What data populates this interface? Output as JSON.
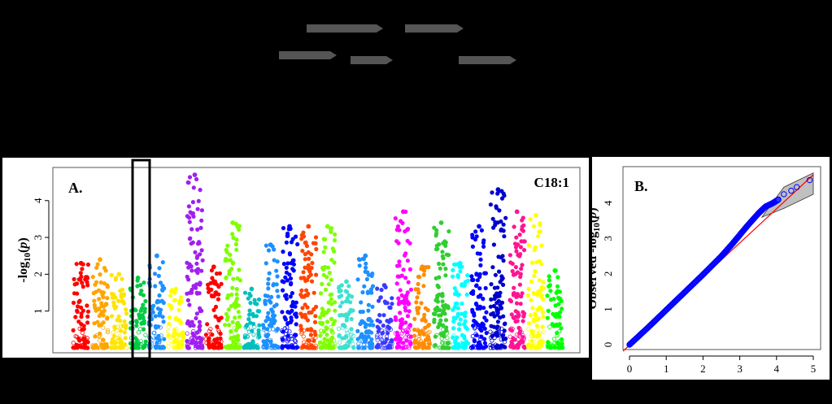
{
  "figure": {
    "gene_track_color": "#555555",
    "highlight_box_color": "#000000"
  },
  "chart_data": [
    {
      "type": "scatter",
      "subtype": "manhattan",
      "panel_label": "A.",
      "trait_label": "C18:1",
      "ylabel": "-log10(p)",
      "ylim": [
        0,
        4.9
      ],
      "yticks": [
        1,
        2,
        3,
        4
      ],
      "x_tick_labels": false,
      "grid": false,
      "chromosome_colors": [
        "#ff0000",
        "#ff3a00",
        "#ffe400",
        "#7fff00",
        "#00e080",
        "#1e90ff",
        "#9b30ff",
        "#ff1493",
        "#ffa500",
        "#7fff00",
        "#0000cd",
        "#ff00ff",
        "#00ced1",
        "#ff4500",
        "#1e90ff",
        "#ff0000",
        "#32cd32",
        "#ff69b4",
        "#8b00ff",
        "#ffff00"
      ],
      "chromosomes": [
        {
          "color": "#ff0000",
          "peak": 2.3
        },
        {
          "color": "#ffa500",
          "peak": 2.4
        },
        {
          "color": "#ffe400",
          "peak": 2.0
        },
        {
          "color": "#00cc44",
          "peak": 1.9
        },
        {
          "color": "#1e90ff",
          "peak": 2.5
        },
        {
          "color": "#ffff00",
          "peak": 1.6
        },
        {
          "color": "#a020f0",
          "peak": 4.7
        },
        {
          "color": "#ff0000",
          "peak": 2.2
        },
        {
          "color": "#7fff00",
          "peak": 3.4
        },
        {
          "color": "#00bfbf",
          "peak": 1.6
        },
        {
          "color": "#1e90ff",
          "peak": 2.8
        },
        {
          "color": "#0000ff",
          "peak": 3.3
        },
        {
          "color": "#ff4500",
          "peak": 3.3
        },
        {
          "color": "#7fff00",
          "peak": 3.3
        },
        {
          "color": "#40e0d0",
          "peak": 1.8
        },
        {
          "color": "#1e90ff",
          "peak": 2.5
        },
        {
          "color": "#3a3aff",
          "peak": 1.7
        },
        {
          "color": "#ff00ff",
          "peak": 3.7
        },
        {
          "color": "#ff8c00",
          "peak": 2.2
        },
        {
          "color": "#32cd32",
          "peak": 3.4
        },
        {
          "color": "#00ffff",
          "peak": 2.3
        },
        {
          "color": "#0000ff",
          "peak": 3.3
        },
        {
          "color": "#0000cd",
          "peak": 4.3
        },
        {
          "color": "#ff1493",
          "peak": 3.7
        },
        {
          "color": "#ffff00",
          "peak": 3.6
        },
        {
          "color": "#00ff00",
          "peak": 2.1
        }
      ]
    },
    {
      "type": "scatter",
      "subtype": "qq-plot",
      "panel_label": "B.",
      "ylabel": "Observed -log10(p)",
      "xlim": [
        0,
        5
      ],
      "ylim": [
        0,
        4.8
      ],
      "xticks": [
        0,
        1,
        2,
        3,
        4,
        5
      ],
      "yticks": [
        0,
        1,
        2,
        3,
        4
      ],
      "point_color": "#0000ff",
      "reference_line_color": "#ff0000",
      "confidence_band_color": "#c0c0c0",
      "points": [
        [
          0,
          0
        ],
        [
          0.5,
          0.48
        ],
        [
          1,
          0.98
        ],
        [
          1.5,
          1.48
        ],
        [
          2,
          1.98
        ],
        [
          2.5,
          2.5
        ],
        [
          2.8,
          2.85
        ],
        [
          3,
          3.1
        ],
        [
          3.2,
          3.35
        ],
        [
          3.5,
          3.7
        ],
        [
          3.7,
          3.9
        ],
        [
          3.9,
          4.0
        ],
        [
          4.05,
          4.1
        ],
        [
          4.2,
          4.25
        ],
        [
          4.4,
          4.35
        ],
        [
          4.55,
          4.45
        ],
        [
          4.9,
          4.65
        ]
      ]
    }
  ]
}
